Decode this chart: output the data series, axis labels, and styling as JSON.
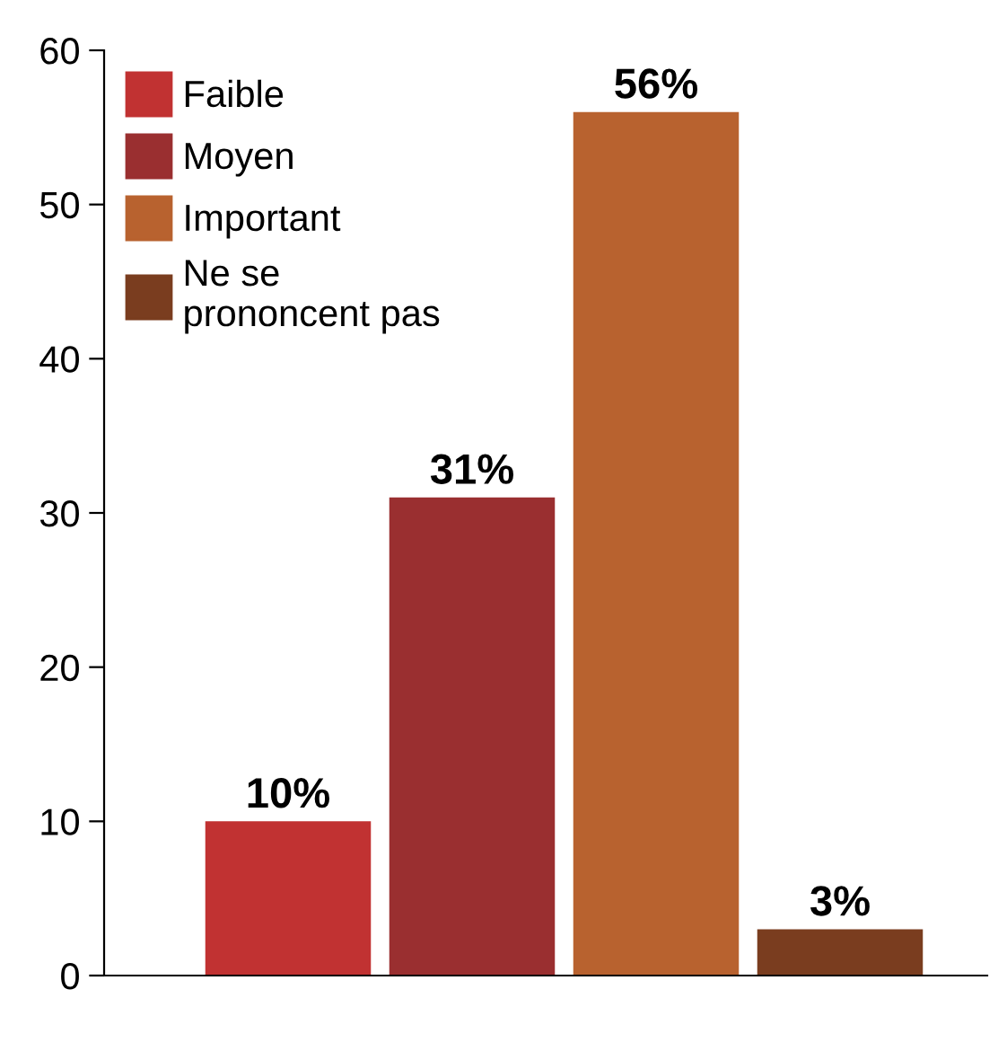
{
  "chart_data": {
    "type": "bar",
    "categories": [
      null,
      null,
      null,
      null
    ],
    "series": [
      {
        "name": "Faible",
        "color": "#c13232",
        "values": [
          10,
          null,
          null,
          null
        ],
        "value_labels": [
          "10%",
          null,
          null,
          null
        ]
      },
      {
        "name": "Moyen",
        "color": "#9a2f30",
        "values": [
          null,
          31,
          null,
          null
        ],
        "value_labels": [
          null,
          "31%",
          null,
          null
        ]
      },
      {
        "name": "Important",
        "color": "#b8622f",
        "values": [
          null,
          null,
          56,
          null
        ],
        "value_labels": [
          null,
          null,
          "56%",
          null
        ]
      },
      {
        "name": "Ne se\nprononcent pas",
        "color": "#7a3d1f",
        "values": [
          null,
          null,
          null,
          3
        ],
        "value_labels": [
          null,
          null,
          null,
          "3%"
        ]
      }
    ],
    "ylim": [
      0,
      60
    ],
    "yticks": [
      0,
      10,
      20,
      30,
      40,
      50,
      60
    ],
    "grid": false,
    "legend": "top left",
    "tick_labels": "y"
  }
}
